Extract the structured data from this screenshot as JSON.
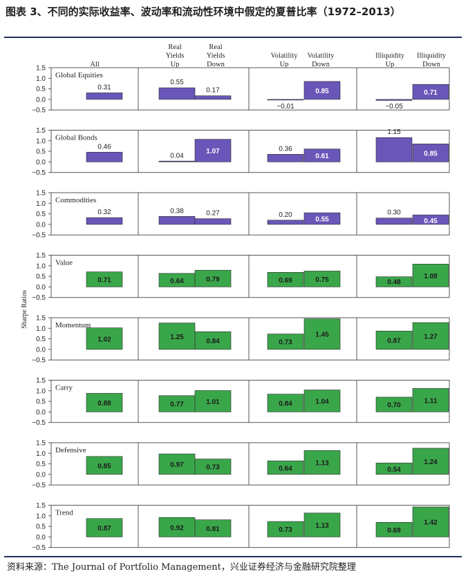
{
  "title": "图表 3、不同的实际收益率、波动率和流动性环境中假定的夏普比率（1972–2013）",
  "source": "资料来源：The Journal of Portfolio Management，兴业证券经济与金融研究院整理",
  "colors": {
    "blue": "#6a56b8",
    "green": "#3aa64a",
    "title_rule": "#1f2f5a"
  },
  "chart_data": {
    "type": "bar",
    "ylabel": "Sharpe Ratios",
    "ylim": [
      -0.5,
      1.5
    ],
    "yticks": [
      "1.5",
      "1.0",
      "0.5",
      "0.0",
      "−0.5"
    ],
    "column_groups": [
      {
        "columns": [
          "All"
        ]
      },
      {
        "columns": [
          "Real\nYields\nUp",
          "Real\nYields\nDown"
        ]
      },
      {
        "columns": [
          "Volatility\nUp",
          "Volatility\nDown"
        ]
      },
      {
        "columns": [
          "Illiquidity\nUp",
          "Illiquidity\nDown"
        ]
      }
    ],
    "panels": [
      {
        "name": "Global Equities",
        "color": "blue",
        "values": [
          0.31,
          0.55,
          0.17,
          -0.01,
          0.85,
          -0.05,
          0.71
        ],
        "labels": [
          "0.31",
          "0.55",
          "0.17",
          "−0.01",
          "0.85",
          "−0.05",
          "0.71"
        ]
      },
      {
        "name": "Global  Bonds",
        "color": "blue",
        "values": [
          0.46,
          0.04,
          1.07,
          0.36,
          0.61,
          1.15,
          0.85
        ],
        "labels": [
          "0.46",
          "0.04",
          "1.07",
          "0.36",
          "0.61",
          "1.15",
          "0.85"
        ]
      },
      {
        "name": "Commodities",
        "color": "blue",
        "values": [
          0.32,
          0.38,
          0.27,
          0.2,
          0.55,
          0.3,
          0.45
        ],
        "labels": [
          "0.32",
          "0.38",
          "0.27",
          "0.20",
          "0.55",
          "0.30",
          "0.45"
        ]
      },
      {
        "name": "Value",
        "color": "green",
        "values": [
          0.71,
          0.64,
          0.79,
          0.69,
          0.75,
          0.48,
          1.08
        ],
        "labels": [
          "0.71",
          "0.64",
          "0.79",
          "0.69",
          "0.75",
          "0.48",
          "1.08"
        ]
      },
      {
        "name": "Momentum",
        "color": "green",
        "values": [
          1.02,
          1.25,
          0.84,
          0.73,
          1.45,
          0.87,
          1.27
        ],
        "labels": [
          "1.02",
          "1.25",
          "0.84",
          "0.73",
          "1.45",
          "0.87",
          "1.27"
        ]
      },
      {
        "name": "Carry",
        "color": "green",
        "values": [
          0.88,
          0.77,
          1.01,
          0.84,
          1.04,
          0.7,
          1.11
        ],
        "labels": [
          "0.88",
          "0.77",
          "1.01",
          "0.84",
          "1.04",
          "0.70",
          "1.11"
        ]
      },
      {
        "name": "Defensive",
        "color": "green",
        "values": [
          0.85,
          0.97,
          0.73,
          0.64,
          1.13,
          0.54,
          1.24
        ],
        "labels": [
          "0.85",
          "0.97",
          "0.73",
          "0.64",
          "1.13",
          "0.54",
          "1.24"
        ]
      },
      {
        "name": "Trend",
        "color": "green",
        "values": [
          0.87,
          0.92,
          0.81,
          0.73,
          1.13,
          0.69,
          1.42
        ],
        "labels": [
          "0.87",
          "0.92",
          "0.81",
          "0.73",
          "1.13",
          "0.69",
          "1.42"
        ]
      }
    ]
  }
}
